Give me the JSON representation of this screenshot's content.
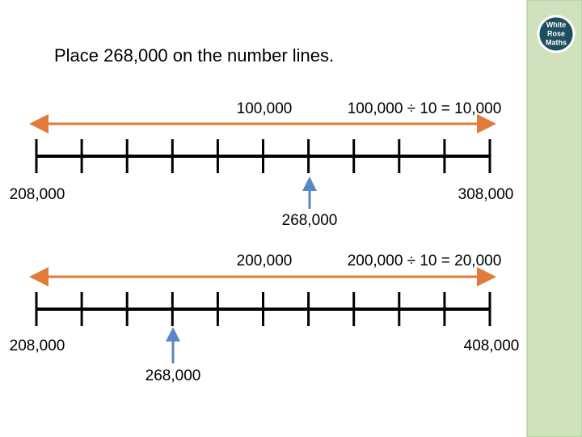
{
  "header": {
    "title": "Place 268,000 on the number lines.",
    "logo": [
      "White",
      "Rose",
      "Maths"
    ]
  },
  "number_lines": [
    {
      "span": "100,000",
      "division": "100,000 ÷ 10 = 10,000",
      "start": "208,000",
      "end": "308,000",
      "marker": "268,000"
    },
    {
      "span": "200,000",
      "division": "200,000 ÷ 10 = 20,000",
      "start": "208,000",
      "end": "408,000",
      "marker": "268,000"
    }
  ]
}
